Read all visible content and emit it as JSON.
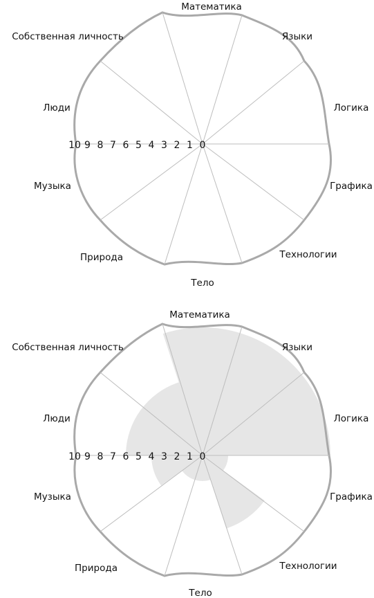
{
  "domain": "Diagram",
  "diagrams": [
    {
      "variant": "empty",
      "sectors": [
        "Математика",
        "Языки",
        "Логика",
        "Графика",
        "Технологии",
        "Тело",
        "Природа",
        "Музыка",
        "Люди",
        "Собственная личность"
      ],
      "scale": [
        "10",
        "9",
        "8",
        "7",
        "6",
        "5",
        "4",
        "3",
        "2",
        "1",
        "0"
      ]
    },
    {
      "variant": "filled",
      "sectors": [
        "Математика",
        "Языки",
        "Логика",
        "Графика",
        "Технологии",
        "Тело",
        "Природа",
        "Музыка",
        "Люди",
        "Собственная личность"
      ],
      "scale": [
        "10",
        "9",
        "8",
        "7",
        "6",
        "5",
        "4",
        "3",
        "2",
        "1",
        "0"
      ],
      "values": [
        10,
        10,
        10,
        2,
        6,
        2,
        2,
        4,
        6,
        6
      ],
      "fill_color": "#e6e6e6"
    }
  ],
  "colors": {
    "outline": "#a9a9a9",
    "spokes": "#bdbdbd",
    "text": "#111111"
  }
}
